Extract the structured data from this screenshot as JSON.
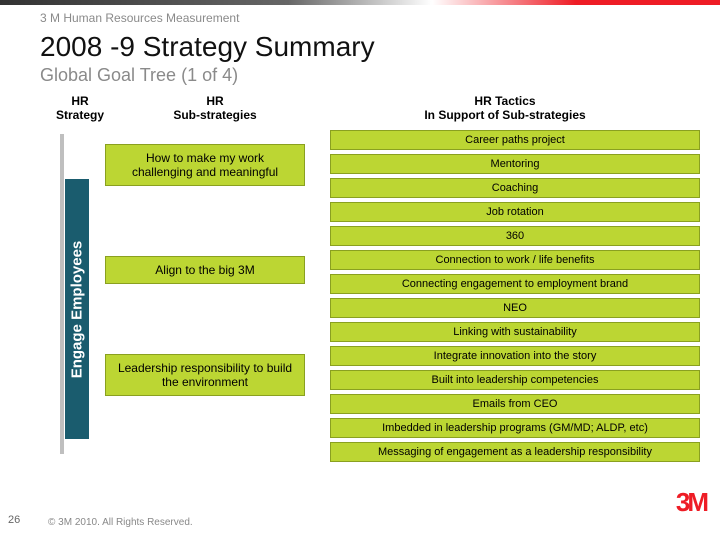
{
  "header": {
    "dept": "3 M Human Resources Measurement",
    "title": "2008 -9 Strategy Summary",
    "subtitle": "Global Goal Tree (1 of 4)"
  },
  "columns": {
    "strategy": "HR\nStrategy",
    "sub": "HR\nSub-strategies",
    "tactics": "HR Tactics\nIn Support of Sub-strategies"
  },
  "strategy_label": "Engage Employees",
  "sub_strategies": [
    "How to make my work challenging and meaningful",
    "Align to the big 3M",
    "Leadership responsibility to build the environment"
  ],
  "tactics": [
    "Career paths project",
    "Mentoring",
    "Coaching",
    "Job rotation",
    "360",
    "Connection to work / life benefits",
    "Connecting engagement to employment brand",
    "NEO",
    "Linking with sustainability",
    "Integrate innovation into the story",
    "Built into leadership competencies",
    "Emails from CEO",
    "Imbedded in leadership programs (GM/MD; ALDP, etc)",
    "Messaging of engagement as a leadership responsibility"
  ],
  "footer": {
    "page": "26",
    "copyright": "© 3M 2010. All Rights Reserved.",
    "logo": "3M"
  },
  "palette": {
    "accent_green": "#bcd633",
    "strategy_teal": "#1a5c6e",
    "brand_red": "#ee1c25",
    "gray_text": "#8a8a8a"
  }
}
